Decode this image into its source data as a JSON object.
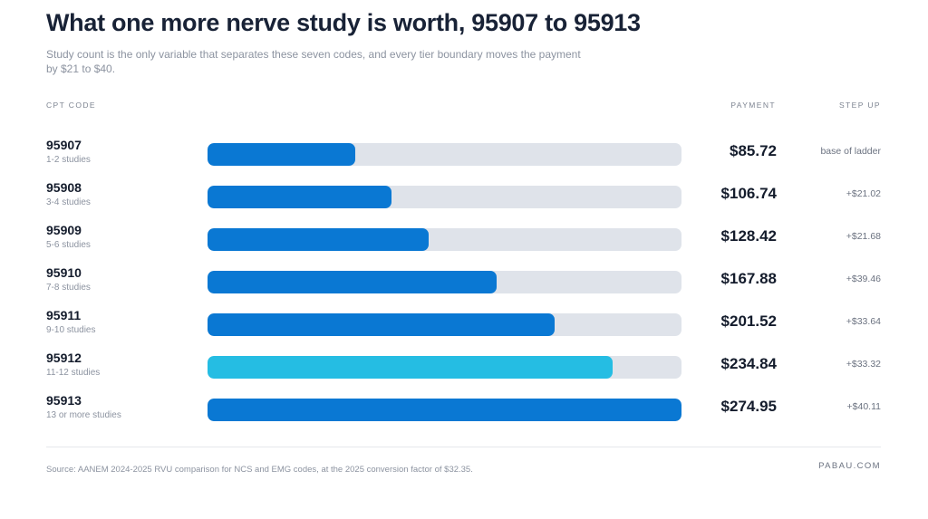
{
  "title": "What one more nerve study is worth, 95907 to 95913",
  "subtitle": "Study count is the only variable that separates these seven codes, and every tier boundary moves the payment by $21 to $40.",
  "headers": {
    "code": "CPT CODE",
    "payment": "PAYMENT",
    "step": "STEP UP"
  },
  "colors": {
    "bar": "#0a78d3",
    "highlight": "#25bde3",
    "track": "#dfe3ea"
  },
  "chart_data": {
    "type": "bar",
    "orientation": "horizontal",
    "xlim": [
      0,
      274.95
    ],
    "categories": [
      "95907",
      "95908",
      "95909",
      "95910",
      "95911",
      "95912",
      "95913"
    ],
    "rows": [
      {
        "code": "95907",
        "studies": "1-2 studies",
        "value": 85.72,
        "payment": "$85.72",
        "step": "base of ladder",
        "highlight": false
      },
      {
        "code": "95908",
        "studies": "3-4 studies",
        "value": 106.74,
        "payment": "$106.74",
        "step": "+$21.02",
        "highlight": false
      },
      {
        "code": "95909",
        "studies": "5-6 studies",
        "value": 128.42,
        "payment": "$128.42",
        "step": "+$21.68",
        "highlight": false
      },
      {
        "code": "95910",
        "studies": "7-8 studies",
        "value": 167.88,
        "payment": "$167.88",
        "step": "+$39.46",
        "highlight": false
      },
      {
        "code": "95911",
        "studies": "9-10 studies",
        "value": 201.52,
        "payment": "$201.52",
        "step": "+$33.64",
        "highlight": false
      },
      {
        "code": "95912",
        "studies": "11-12 studies",
        "value": 234.84,
        "payment": "$234.84",
        "step": "+$33.32",
        "highlight": true
      },
      {
        "code": "95913",
        "studies": "13 or more studies",
        "value": 274.95,
        "payment": "$274.95",
        "step": "+$40.11",
        "highlight": false
      }
    ]
  },
  "footer": {
    "source": "Source: AANEM 2024-2025 RVU comparison for NCS and EMG codes, at the 2025 conversion factor of $32.35.",
    "brand": "PABAU.COM"
  }
}
